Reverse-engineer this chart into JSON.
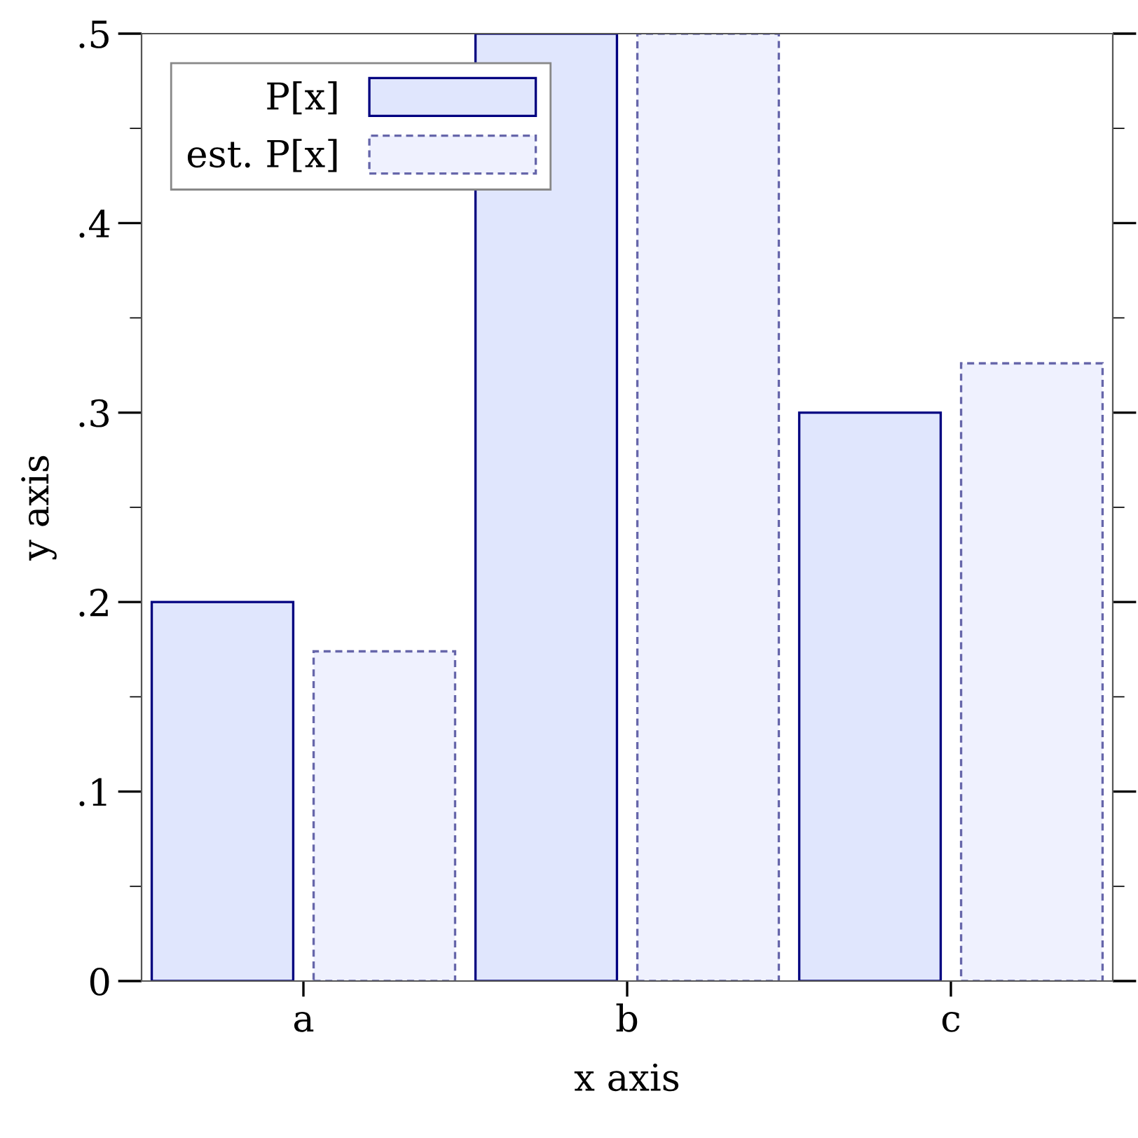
{
  "chart_data": {
    "type": "bar",
    "xlabel": "x axis",
    "ylabel": "y axis",
    "categories": [
      "a",
      "b",
      "c"
    ],
    "series": [
      {
        "name": "P[x]",
        "color": "#e0e6fd",
        "line_style": "solid",
        "values": [
          0.2,
          0.5,
          0.3
        ]
      },
      {
        "name": "est. P[x]",
        "color": "#eff1fe",
        "line_style": "dashed",
        "values": [
          0.174,
          0.5,
          0.326
        ]
      }
    ],
    "ylim": [
      0,
      0.5
    ],
    "yticks": [
      {
        "value": 0,
        "label": "0"
      },
      {
        "value": 0.1,
        "label": ".1"
      },
      {
        "value": 0.2,
        "label": ".2"
      },
      {
        "value": 0.3,
        "label": ".3"
      },
      {
        "value": 0.4,
        "label": ".4"
      },
      {
        "value": 0.5,
        "label": ".5"
      }
    ],
    "legend": "top left",
    "grid": false
  }
}
